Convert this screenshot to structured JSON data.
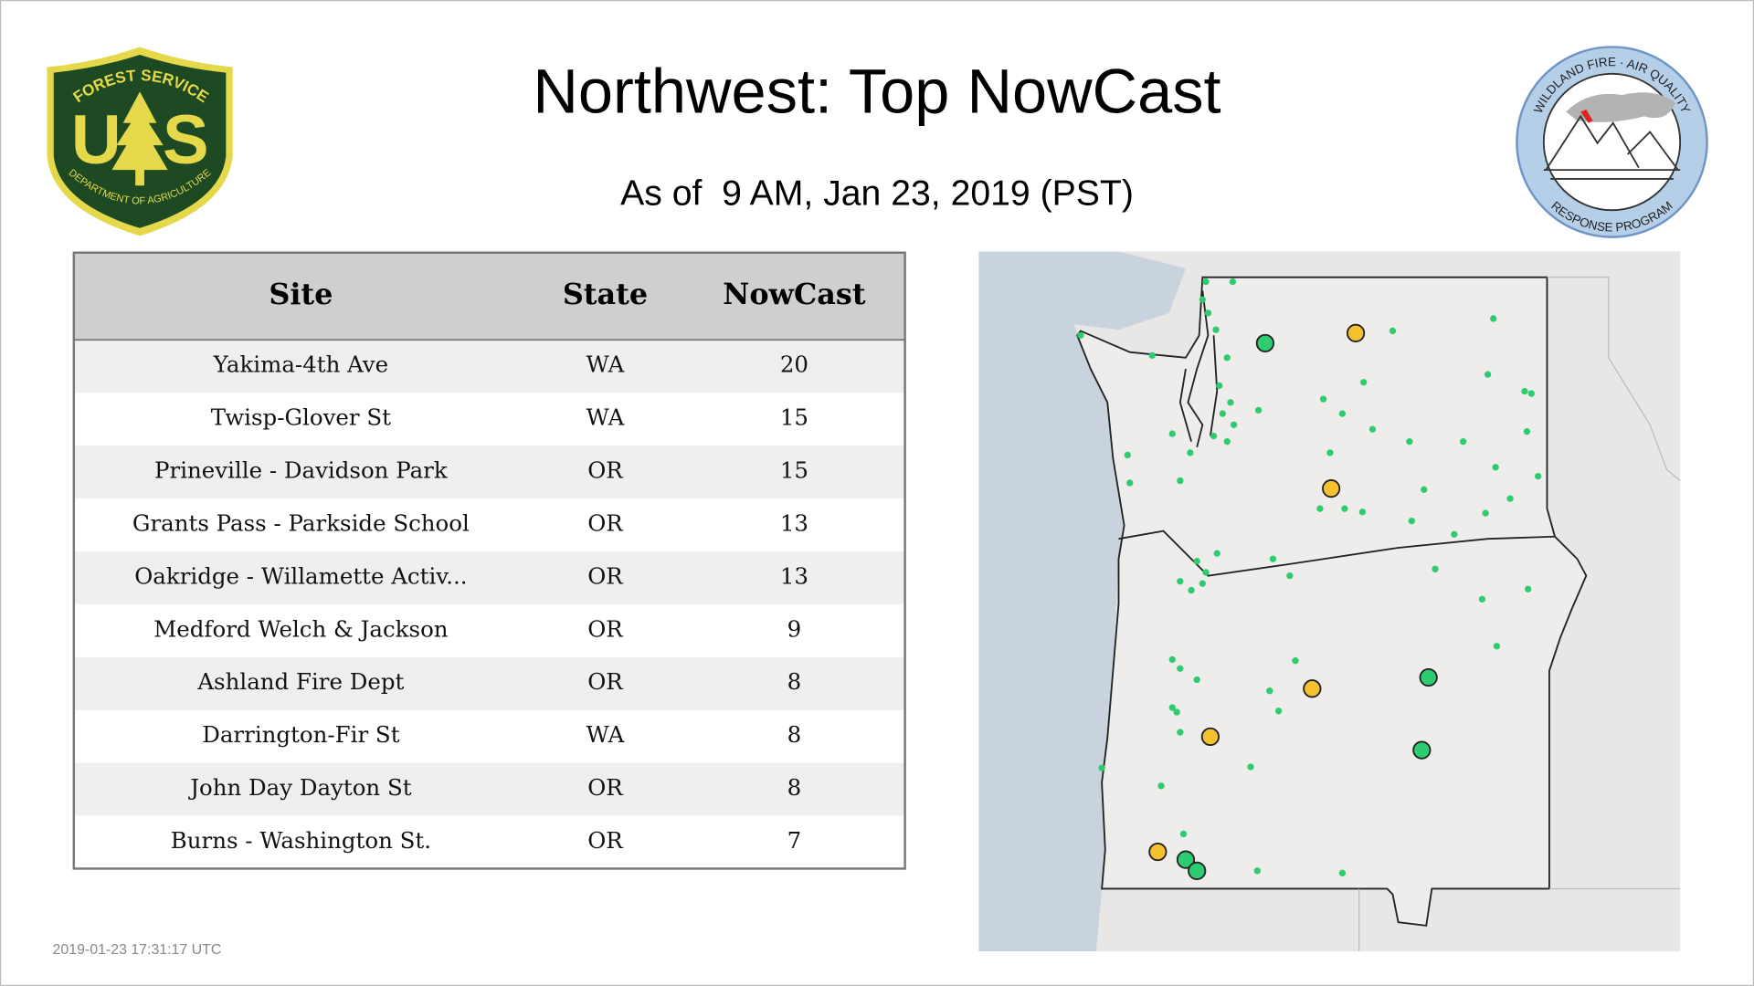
{
  "header": {
    "title": "Northwest: Top NowCast",
    "subtitle": "As of  9 AM, Jan 23, 2019 (PST)"
  },
  "logos": {
    "forest_service": {
      "top": "FOREST SERVICE",
      "left": "U",
      "right": "S",
      "bottom": "DEPARTMENT OF AGRICULTURE"
    },
    "wildland_fire": {
      "top": "WILDLAND FIRE · AIR QUALITY",
      "bottom": "RESPONSE PROGRAM"
    }
  },
  "table": {
    "columns": [
      "Site",
      "State",
      "NowCast"
    ],
    "rows": [
      [
        "Yakima-4th Ave",
        "WA",
        20
      ],
      [
        "Twisp-Glover St",
        "WA",
        15
      ],
      [
        "Prineville - Davidson Park",
        "OR",
        15
      ],
      [
        "Grants Pass - Parkside School",
        "OR",
        13
      ],
      [
        "Oakridge - Willamette Activ...",
        "OR",
        13
      ],
      [
        "Medford Welch & Jackson",
        "OR",
        9
      ],
      [
        "Ashland Fire Dept",
        "OR",
        8
      ],
      [
        "Darrington-Fir St",
        "WA",
        8
      ],
      [
        "John Day Dayton St",
        "OR",
        8
      ],
      [
        "Burns - Washington St.",
        "OR",
        7
      ]
    ]
  },
  "footer": {
    "timestamp": "2019-01-23 17:31:17 UTC"
  }
}
